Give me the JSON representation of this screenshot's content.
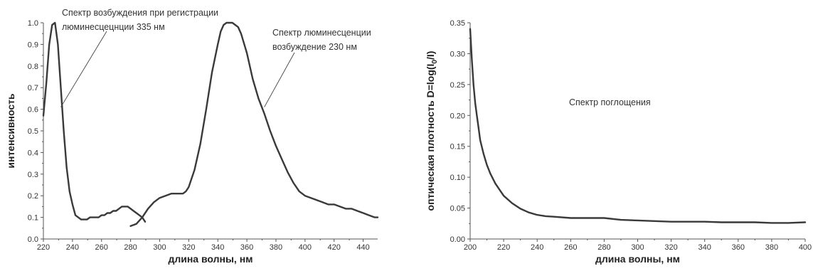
{
  "chart_data": [
    {
      "type": "line",
      "xlabel": "длина волны, нм",
      "ylabel": "интенсивность",
      "xlim": [
        220,
        450
      ],
      "ylim": [
        0,
        1.0
      ],
      "xticks": [
        "220",
        "240",
        "260",
        "280",
        "300",
        "320",
        "340",
        "360",
        "380",
        "400",
        "420",
        "440"
      ],
      "yticks": [
        "0.0",
        "0.1",
        "0.2",
        "0.3",
        "0.4",
        "0.5",
        "0.6",
        "0.7",
        "0.8",
        "0.9",
        "1.0"
      ],
      "annotations": [
        {
          "lines": [
            "Спектр возбуждения при регистрации",
            "люминесцецнции 335 нм"
          ],
          "target": [
            232,
            0.61
          ]
        },
        {
          "lines": [
            "Спектр люминесценции",
            "возбуждение 230 нм"
          ],
          "target": [
            372,
            0.61
          ]
        }
      ],
      "series": [
        {
          "x": [
            220,
            222,
            224,
            226,
            228,
            230,
            232,
            234,
            236,
            238,
            240,
            242,
            244,
            246,
            248,
            250,
            252,
            254,
            256,
            258,
            260,
            262,
            264,
            266,
            268,
            270,
            272,
            274,
            276,
            278,
            280,
            282,
            284,
            286,
            288,
            290
          ],
          "y": [
            0.57,
            0.72,
            0.9,
            0.99,
            1.0,
            0.9,
            0.7,
            0.5,
            0.33,
            0.22,
            0.16,
            0.11,
            0.1,
            0.09,
            0.09,
            0.09,
            0.1,
            0.1,
            0.1,
            0.1,
            0.11,
            0.11,
            0.12,
            0.12,
            0.13,
            0.13,
            0.14,
            0.15,
            0.15,
            0.15,
            0.14,
            0.13,
            0.12,
            0.11,
            0.1,
            0.08
          ]
        },
        {
          "x": [
            280,
            284,
            288,
            292,
            296,
            300,
            304,
            308,
            312,
            316,
            318,
            320,
            324,
            328,
            332,
            336,
            340,
            342,
            344,
            346,
            348,
            350,
            352,
            354,
            356,
            360,
            364,
            368,
            372,
            376,
            380,
            384,
            388,
            392,
            396,
            400,
            404,
            408,
            412,
            416,
            420,
            424,
            428,
            432,
            436,
            440,
            444,
            448,
            450
          ],
          "y": [
            0.06,
            0.07,
            0.1,
            0.14,
            0.17,
            0.19,
            0.2,
            0.21,
            0.21,
            0.21,
            0.22,
            0.24,
            0.32,
            0.44,
            0.6,
            0.77,
            0.9,
            0.96,
            0.99,
            1.0,
            1.0,
            1.0,
            0.99,
            0.98,
            0.95,
            0.86,
            0.74,
            0.65,
            0.58,
            0.5,
            0.43,
            0.37,
            0.31,
            0.26,
            0.22,
            0.2,
            0.19,
            0.18,
            0.17,
            0.16,
            0.16,
            0.15,
            0.14,
            0.14,
            0.13,
            0.12,
            0.11,
            0.1,
            0.1
          ]
        }
      ]
    },
    {
      "type": "line",
      "xlabel": "длина волны, нм",
      "ylabel": "оптическая плотность D=log(I",
      "ylabel_sub": "0",
      "ylabel_tail": "/I)",
      "xlim": [
        200,
        400
      ],
      "ylim": [
        0,
        0.35
      ],
      "xticks": [
        "200",
        "220",
        "240",
        "260",
        "280",
        "300",
        "320",
        "340",
        "360",
        "380",
        "400"
      ],
      "yticks": [
        "0.00",
        "0.05",
        "0.10",
        "0.15",
        "0.20",
        "0.25",
        "0.30",
        "0.35"
      ],
      "annotations": [
        {
          "lines": [
            "Спектр поглощения"
          ]
        }
      ],
      "series": [
        {
          "x": [
            200,
            201,
            202,
            203,
            204,
            205,
            206,
            208,
            210,
            212,
            215,
            218,
            220,
            225,
            230,
            235,
            240,
            245,
            250,
            260,
            270,
            280,
            290,
            300,
            310,
            320,
            330,
            340,
            350,
            360,
            370,
            380,
            390,
            400
          ],
          "y": [
            0.34,
            0.29,
            0.25,
            0.22,
            0.2,
            0.18,
            0.16,
            0.138,
            0.12,
            0.106,
            0.09,
            0.078,
            0.07,
            0.058,
            0.049,
            0.043,
            0.039,
            0.037,
            0.036,
            0.034,
            0.034,
            0.034,
            0.031,
            0.03,
            0.029,
            0.028,
            0.028,
            0.028,
            0.027,
            0.027,
            0.027,
            0.026,
            0.026,
            0.027
          ]
        }
      ]
    }
  ]
}
